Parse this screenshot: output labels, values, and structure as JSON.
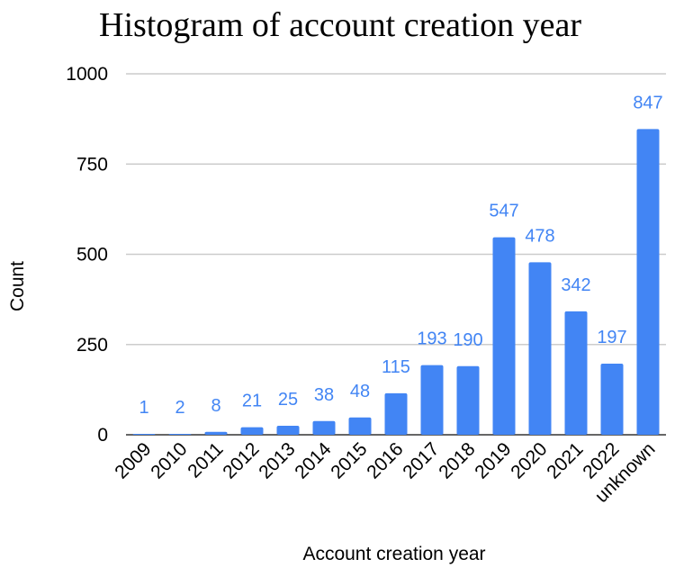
{
  "chart_data": {
    "type": "bar",
    "title": "Histogram of account creation year",
    "xlabel": "Account creation year",
    "ylabel": "Count",
    "categories": [
      "2009",
      "2010",
      "2011",
      "2012",
      "2013",
      "2014",
      "2015",
      "2016",
      "2017",
      "2018",
      "2019",
      "2020",
      "2021",
      "2022",
      "unknown"
    ],
    "values": [
      1,
      2,
      8,
      21,
      25,
      38,
      48,
      115,
      193,
      190,
      547,
      478,
      342,
      197,
      847
    ],
    "ylim": [
      0,
      1000
    ],
    "yticks": [
      0,
      250,
      500,
      750,
      1000
    ],
    "grid": true,
    "legend": "none",
    "bar_color": "#4285f4",
    "label_color": "#4285f4"
  }
}
